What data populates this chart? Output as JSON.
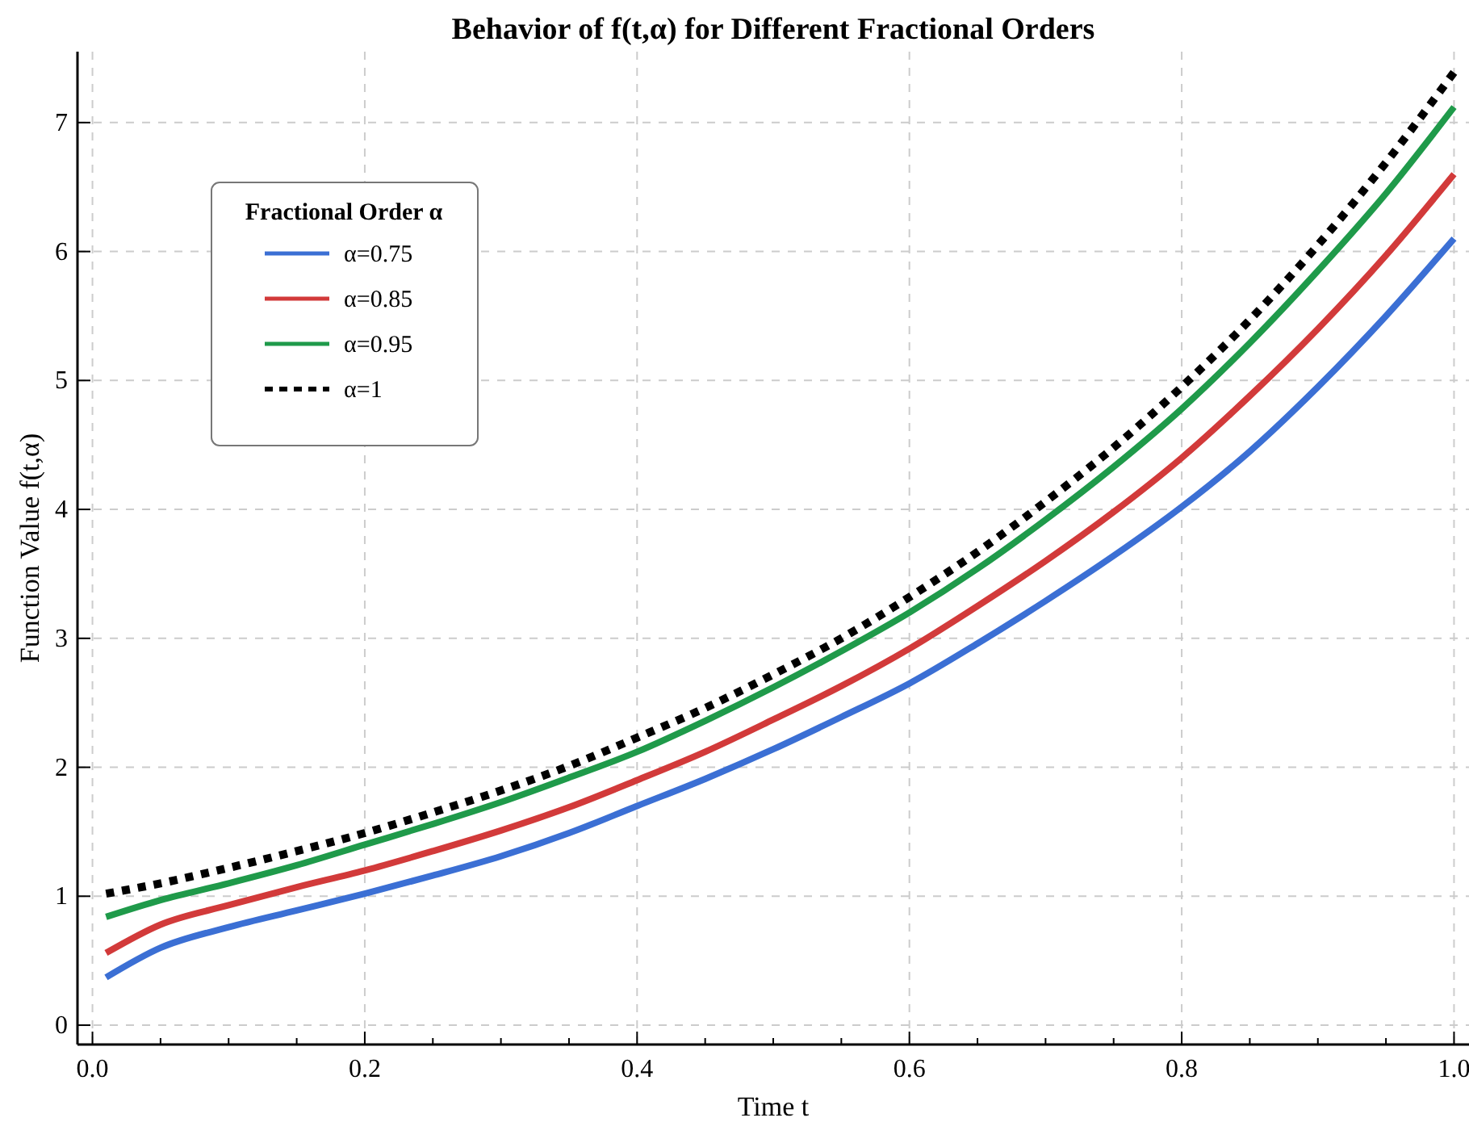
{
  "chart_data": {
    "type": "line",
    "title": "Behavior of f(t,α) for Different Fractional Orders",
    "xlabel": "Time t",
    "ylabel": "Function Value f(t,α)",
    "legend_title": "Fractional Order α",
    "legend": "top left",
    "grid": true,
    "x": [
      0.01,
      0.05,
      0.1,
      0.15,
      0.2,
      0.25,
      0.3,
      0.35,
      0.4,
      0.45,
      0.5,
      0.55,
      0.6,
      0.65,
      0.7,
      0.75,
      0.8,
      0.85,
      0.9,
      0.95,
      1.0
    ],
    "xlim": [
      -0.011,
      1.011
    ],
    "ylim": [
      -0.15,
      7.55
    ],
    "xticks": [
      {
        "value": 0,
        "label": "0.0"
      },
      {
        "value": 0.05,
        "label": null
      },
      {
        "value": 0.1,
        "label": null
      },
      {
        "value": 0.15,
        "label": null
      },
      {
        "value": 0.2,
        "label": "0.2"
      },
      {
        "value": 0.25,
        "label": null
      },
      {
        "value": 0.3,
        "label": null
      },
      {
        "value": 0.35,
        "label": null
      },
      {
        "value": 0.4,
        "label": "0.4"
      },
      {
        "value": 0.45,
        "label": null
      },
      {
        "value": 0.5,
        "label": null
      },
      {
        "value": 0.55,
        "label": null
      },
      {
        "value": 0.6,
        "label": "0.6"
      },
      {
        "value": 0.65,
        "label": null
      },
      {
        "value": 0.7,
        "label": null
      },
      {
        "value": 0.75,
        "label": null
      },
      {
        "value": 0.8,
        "label": "0.8"
      },
      {
        "value": 0.85,
        "label": null
      },
      {
        "value": 0.9,
        "label": null
      },
      {
        "value": 0.95,
        "label": null
      },
      {
        "value": 1,
        "label": "1.0"
      }
    ],
    "yticks": [
      0,
      1,
      2,
      3,
      4,
      5,
      6,
      7
    ],
    "series": [
      {
        "name": "α=0.75",
        "color": "#3b6fd4",
        "line_style": "solid",
        "values": [
          0.37,
          0.6,
          0.76,
          0.89,
          1.02,
          1.16,
          1.31,
          1.49,
          1.7,
          1.91,
          2.14,
          2.39,
          2.65,
          2.96,
          3.29,
          3.64,
          4.02,
          4.45,
          4.95,
          5.5,
          6.1
        ]
      },
      {
        "name": "α=0.85",
        "color": "#d23a3a",
        "line_style": "solid",
        "values": [
          0.56,
          0.78,
          0.93,
          1.07,
          1.2,
          1.35,
          1.51,
          1.69,
          1.9,
          2.12,
          2.37,
          2.63,
          2.92,
          3.25,
          3.6,
          3.98,
          4.4,
          4.88,
          5.4,
          5.97,
          6.6
        ]
      },
      {
        "name": "α=0.95",
        "color": "#1f9a4a",
        "line_style": "solid",
        "values": [
          0.84,
          0.97,
          1.1,
          1.24,
          1.4,
          1.56,
          1.73,
          1.92,
          2.12,
          2.36,
          2.62,
          2.9,
          3.2,
          3.54,
          3.92,
          4.33,
          4.78,
          5.29,
          5.85,
          6.45,
          7.12
        ]
      },
      {
        "name": "α=1",
        "color": "#000000",
        "line_style": "dotted",
        "values": [
          1.02,
          1.1,
          1.22,
          1.35,
          1.49,
          1.65,
          1.82,
          2.01,
          2.23,
          2.46,
          2.72,
          3.0,
          3.32,
          3.67,
          4.06,
          4.48,
          4.95,
          5.47,
          6.05,
          6.69,
          7.39
        ]
      }
    ]
  }
}
